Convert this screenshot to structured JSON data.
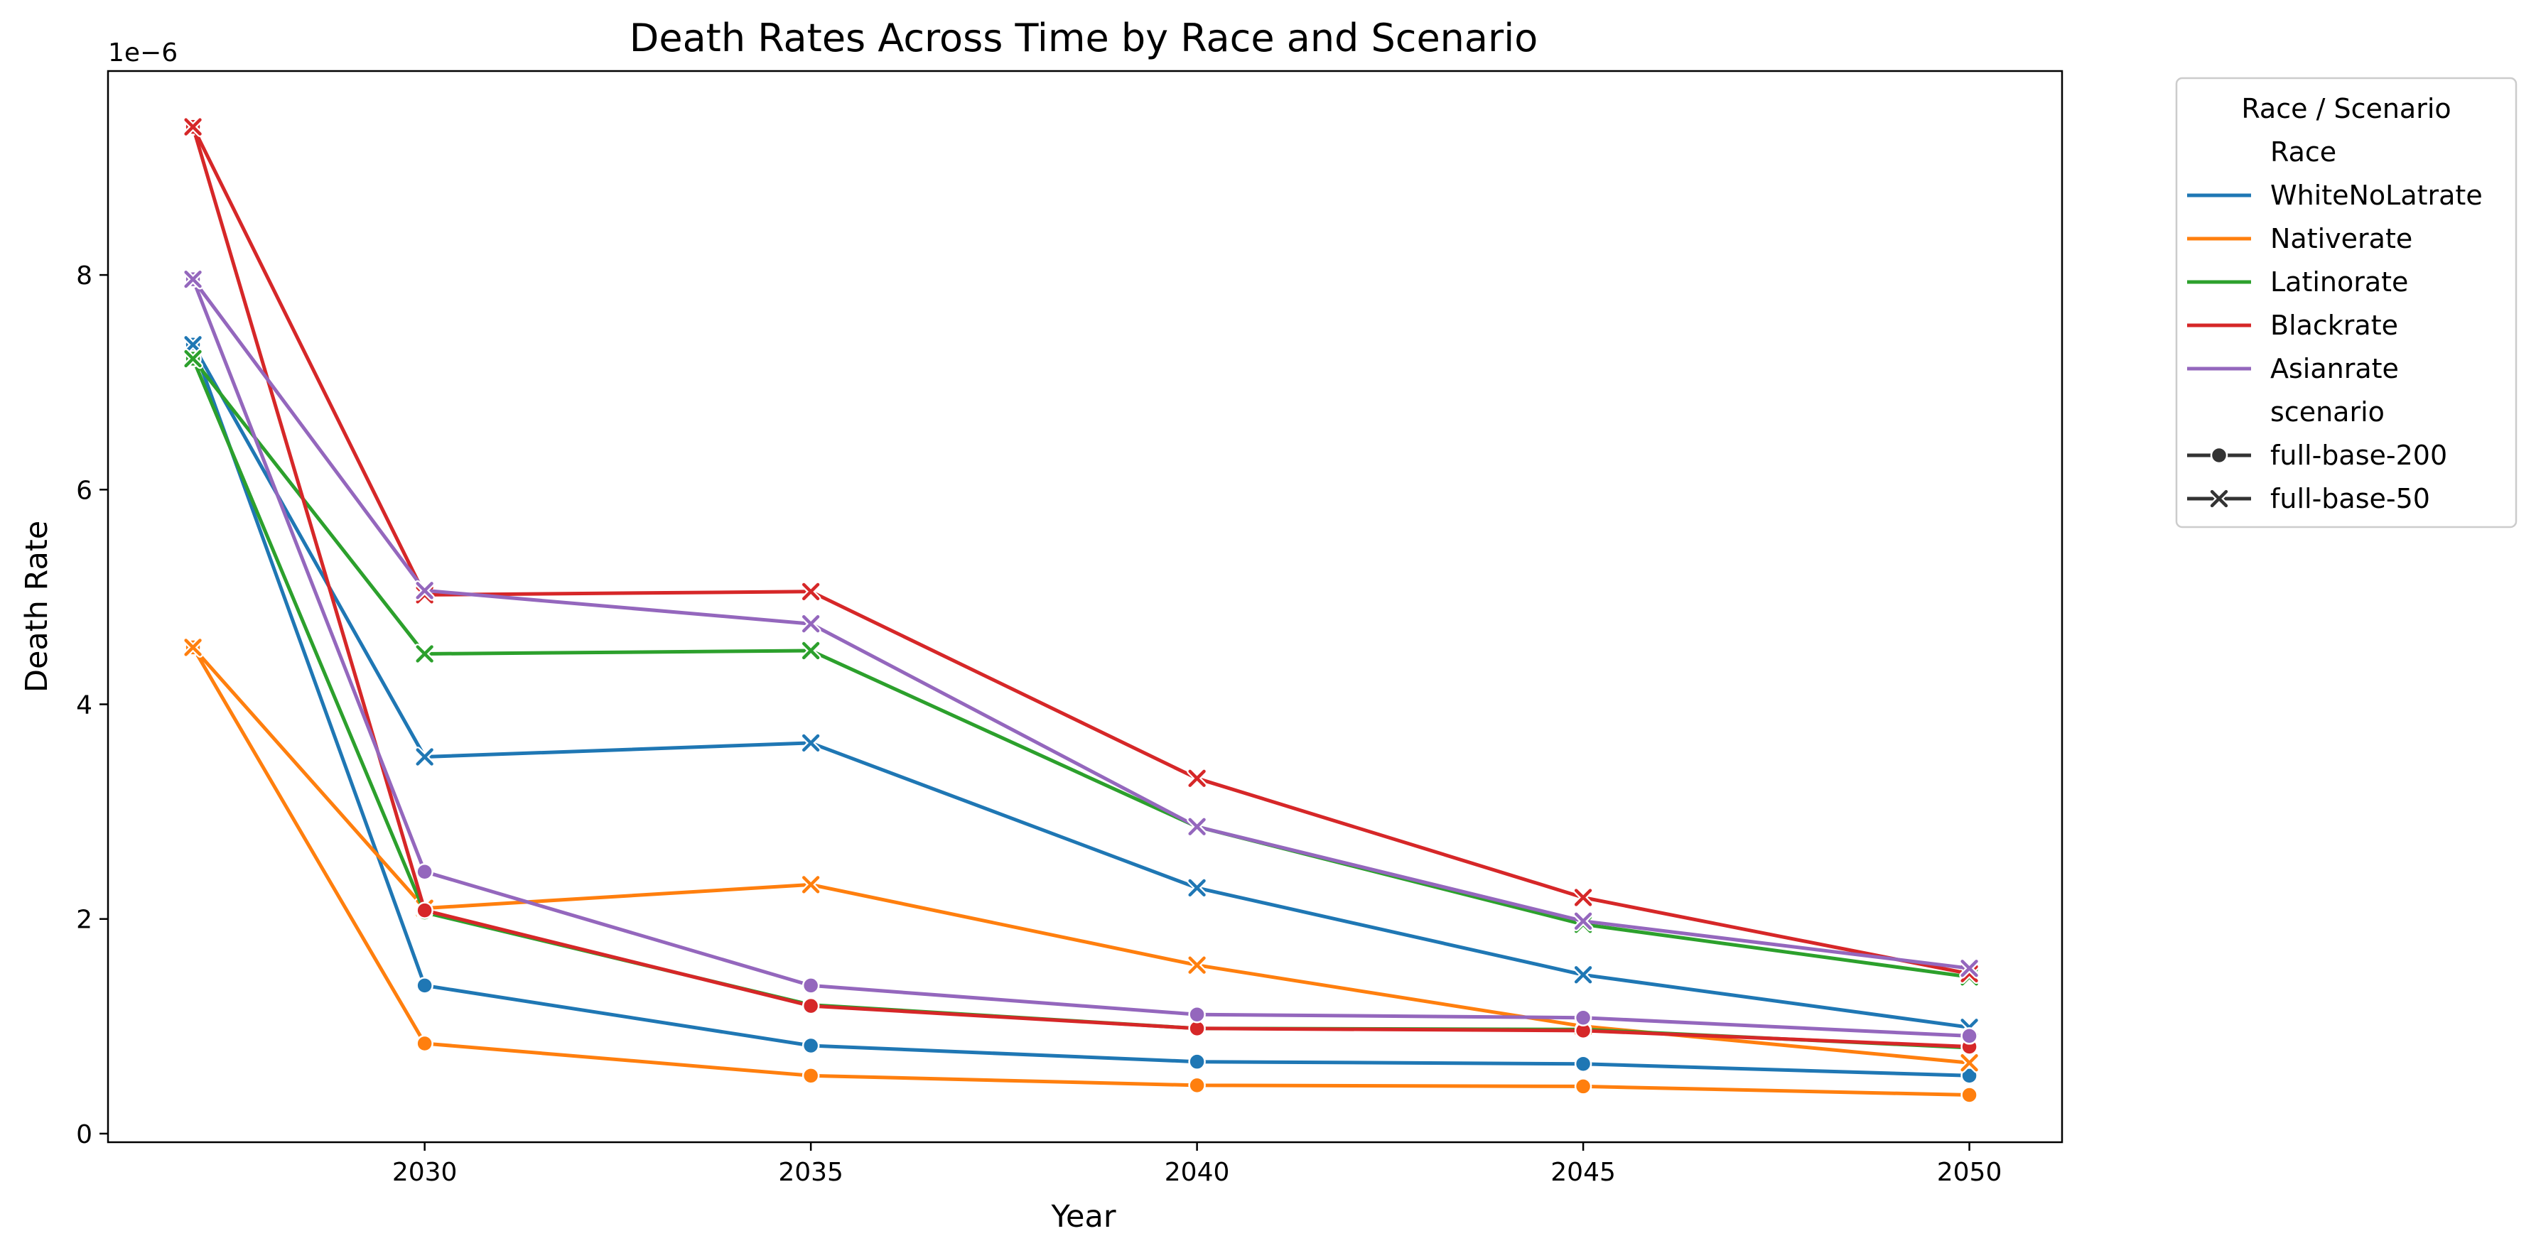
{
  "chart_data": {
    "type": "line",
    "title": "Death Rates Across Time by Race and Scenario",
    "xlabel": "Year",
    "ylabel": "Death Rate",
    "y_offset_label": "1e−6",
    "x": [
      2027,
      2030,
      2035,
      2040,
      2045,
      2050
    ],
    "xlim": [
      2025.9,
      2051.2
    ],
    "ylim": [
      -0.08,
      9.9
    ],
    "xticks": [
      2030,
      2035,
      2040,
      2045,
      2050
    ],
    "xtick_labels": [
      "2030",
      "2035",
      "2040",
      "2045",
      "2050"
    ],
    "yticks": [
      0,
      2,
      4,
      6,
      8
    ],
    "ytick_labels": [
      "0",
      "2",
      "4",
      "6",
      "8"
    ],
    "grid": false,
    "legend": {
      "title": "Race / Scenario",
      "placement": "outside-top-right",
      "race_header": "Race",
      "scenario_header": "scenario",
      "races": [
        {
          "name": "WhiteNoLatrate",
          "color": "#1f77b4"
        },
        {
          "name": "Nativerate",
          "color": "#ff7f0e"
        },
        {
          "name": "Latinorate",
          "color": "#2ca02c"
        },
        {
          "name": "Blackrate",
          "color": "#d62728"
        },
        {
          "name": "Asianrate",
          "color": "#9467bd"
        }
      ],
      "scenarios": [
        {
          "name": "full-base-200",
          "marker": "circle"
        },
        {
          "name": "full-base-50",
          "marker": "x"
        }
      ]
    },
    "series": [
      {
        "race": "WhiteNoLatrate",
        "scenario": "full-base-200",
        "color": "#1f77b4",
        "marker": "circle",
        "values": [
          7.35,
          1.38,
          0.82,
          0.67,
          0.65,
          0.54
        ]
      },
      {
        "race": "WhiteNoLatrate",
        "scenario": "full-base-50",
        "color": "#1f77b4",
        "marker": "x",
        "values": [
          7.35,
          3.51,
          3.64,
          2.29,
          1.48,
          0.99
        ]
      },
      {
        "race": "Nativerate",
        "scenario": "full-base-200",
        "color": "#ff7f0e",
        "marker": "circle",
        "values": [
          4.53,
          0.84,
          0.54,
          0.45,
          0.44,
          0.36
        ]
      },
      {
        "race": "Nativerate",
        "scenario": "full-base-50",
        "color": "#ff7f0e",
        "marker": "x",
        "values": [
          4.53,
          2.1,
          2.32,
          1.57,
          1.0,
          0.66
        ]
      },
      {
        "race": "Latinorate",
        "scenario": "full-base-200",
        "color": "#2ca02c",
        "marker": "circle",
        "values": [
          7.22,
          2.06,
          1.2,
          0.98,
          0.97,
          0.8
        ]
      },
      {
        "race": "Latinorate",
        "scenario": "full-base-50",
        "color": "#2ca02c",
        "marker": "x",
        "values": [
          7.22,
          4.47,
          4.5,
          2.86,
          1.95,
          1.46
        ]
      },
      {
        "race": "Blackrate",
        "scenario": "full-base-200",
        "color": "#d62728",
        "marker": "circle",
        "values": [
          9.38,
          2.08,
          1.19,
          0.98,
          0.96,
          0.81
        ]
      },
      {
        "race": "Blackrate",
        "scenario": "full-base-50",
        "color": "#d62728",
        "marker": "x",
        "values": [
          9.38,
          5.02,
          5.05,
          3.31,
          2.2,
          1.49
        ]
      },
      {
        "race": "Asianrate",
        "scenario": "full-base-200",
        "color": "#9467bd",
        "marker": "circle",
        "values": [
          7.96,
          2.44,
          1.38,
          1.11,
          1.08,
          0.91
        ]
      },
      {
        "race": "Asianrate",
        "scenario": "full-base-50",
        "color": "#9467bd",
        "marker": "x",
        "values": [
          7.96,
          5.06,
          4.75,
          2.86,
          1.98,
          1.54
        ]
      }
    ]
  }
}
